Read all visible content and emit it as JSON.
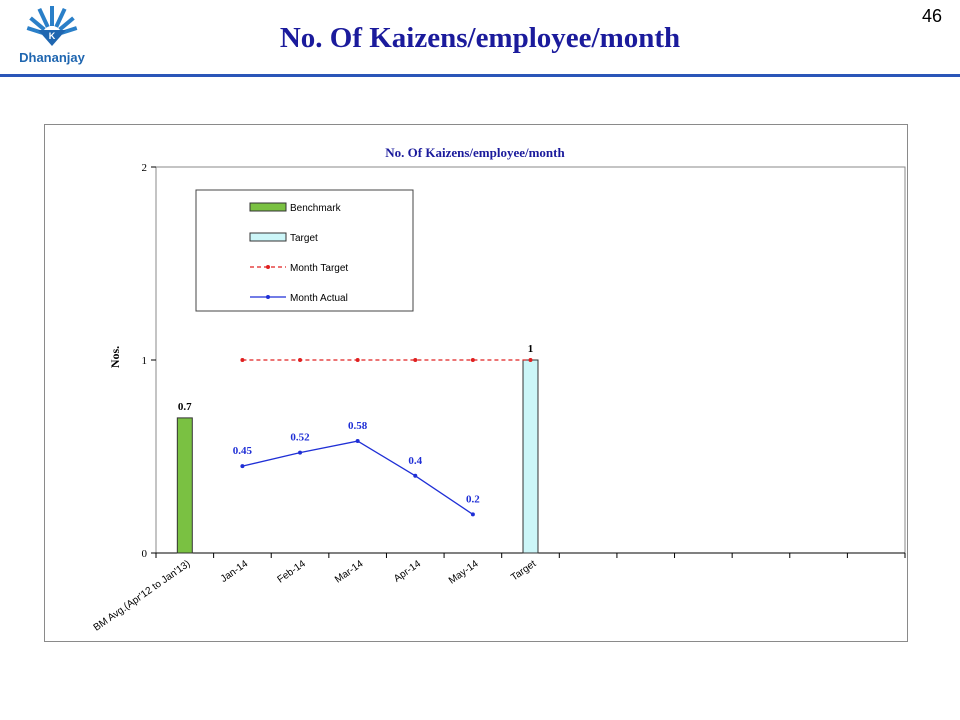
{
  "header": {
    "title": "No. Of Kaizens/employee/month",
    "page_number": "46",
    "logo_text": "Dhananjay",
    "rule_color": "#2a56b8",
    "title_color": "#1b1b9c"
  },
  "chart_data": {
    "type": "bar",
    "title": "No. Of Kaizens/employee/month",
    "xlabel": "",
    "ylabel": "Nos.",
    "ylim": [
      0,
      2
    ],
    "yticks": [
      0,
      1,
      2
    ],
    "grid": false,
    "legend_position": "top-left",
    "categories": [
      "BM Avg.(Apr'12 to Jan'13)",
      "Jan-14",
      "Feb-14",
      "Mar-14",
      "Apr-14",
      "May-14",
      "Target",
      "",
      "",
      "",
      "",
      "",
      ""
    ],
    "series": [
      {
        "name": "Benchmark",
        "kind": "bar",
        "color": "#7ac142",
        "values": [
          0.7,
          null,
          null,
          null,
          null,
          null,
          null,
          null,
          null,
          null,
          null,
          null,
          null
        ],
        "labels": [
          "0.7"
        ]
      },
      {
        "name": "Target",
        "kind": "bar",
        "color": "#ccf6f8",
        "values": [
          null,
          null,
          null,
          null,
          null,
          null,
          1,
          null,
          null,
          null,
          null,
          null,
          null
        ],
        "labels": [
          "1"
        ]
      },
      {
        "name": "Month Target",
        "kind": "line",
        "style": "dashed",
        "color": "#e02020",
        "values": [
          null,
          1,
          1,
          1,
          1,
          1,
          1,
          null,
          null,
          null,
          null,
          null,
          null
        ]
      },
      {
        "name": "Month Actual",
        "kind": "line",
        "style": "solid",
        "color": "#1f2fd6",
        "values": [
          null,
          0.45,
          0.52,
          0.58,
          0.4,
          0.2,
          null,
          null,
          null,
          null,
          null,
          null,
          null
        ],
        "labels": [
          "0.45",
          "0.52",
          "0.58",
          "0.4",
          "0.2"
        ]
      }
    ]
  }
}
